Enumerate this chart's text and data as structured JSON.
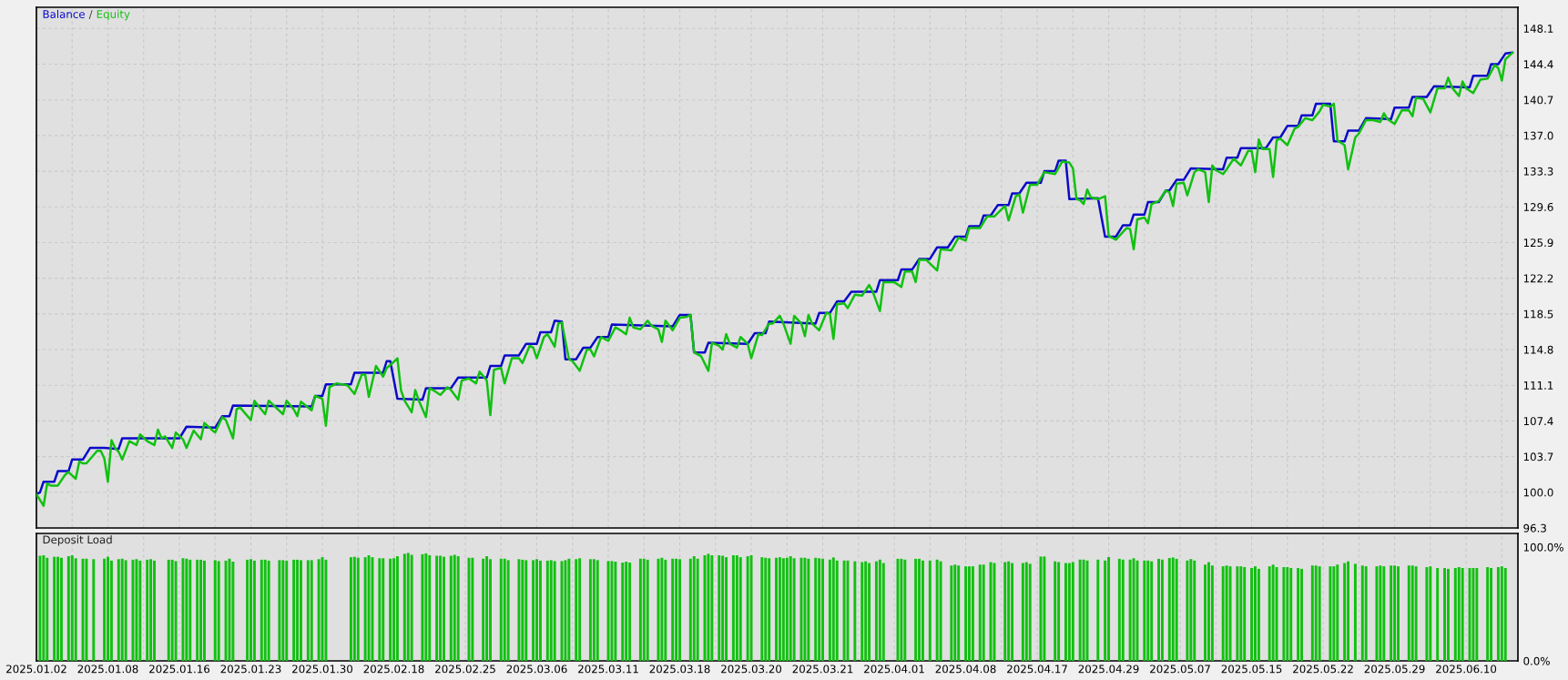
{
  "chart_data": [
    {
      "type": "line",
      "legend": "top left",
      "annotations": [
        "/"
      ],
      "grid": true,
      "tick_labels": "y",
      "categories": [
        "2025.01.02",
        null,
        null,
        null,
        null,
        null,
        null,
        null,
        null,
        null,
        null,
        null,
        null,
        null,
        null,
        null,
        null,
        null,
        null,
        null,
        "2025.01.08",
        null,
        null,
        null,
        null,
        null,
        null,
        null,
        null,
        null,
        null,
        null,
        null,
        null,
        null,
        null,
        null,
        null,
        null,
        null,
        "2025.01.16",
        null,
        null,
        null,
        null,
        null,
        null,
        null,
        null,
        null,
        null,
        null,
        null,
        null,
        null,
        null,
        null,
        null,
        null,
        null,
        "2025.01.23",
        null,
        null,
        null,
        null,
        null,
        null,
        null,
        null,
        null,
        null,
        null,
        null,
        null,
        null,
        null,
        null,
        null,
        null,
        null,
        "2025.01.30",
        null,
        null,
        null,
        null,
        null,
        null,
        null,
        null,
        null,
        null,
        null,
        null,
        null,
        null,
        null,
        null,
        null,
        null,
        null,
        "2025.02.18",
        null,
        null,
        null,
        null,
        null,
        null,
        null,
        null,
        null,
        null,
        null,
        null,
        null,
        null,
        null,
        null,
        null,
        null,
        null,
        "2025.02.25",
        null,
        null,
        null,
        null,
        null,
        null,
        null,
        null,
        null,
        null,
        null,
        null,
        null,
        null,
        null,
        null,
        null,
        null,
        null,
        "2025.03.06",
        null,
        null,
        null,
        null,
        null,
        null,
        null,
        null,
        null,
        null,
        null,
        null,
        null,
        null,
        null,
        null,
        null,
        null,
        null,
        "2025.03.11",
        null,
        null,
        null,
        null,
        null,
        null,
        null,
        null,
        null,
        null,
        null,
        null,
        null,
        null,
        null,
        null,
        null,
        null,
        null,
        "2025.03.18",
        null,
        null,
        null,
        null,
        null,
        null,
        null,
        null,
        null,
        null,
        null,
        null,
        null,
        null,
        null,
        null,
        null,
        null,
        null,
        "2025.03.20",
        null,
        null,
        null,
        null,
        null,
        null,
        null,
        null,
        null,
        null,
        null,
        null,
        null,
        null,
        null,
        null,
        null,
        null,
        null,
        "2025.03.21",
        null,
        null,
        null,
        null,
        null,
        null,
        null,
        null,
        null,
        null,
        null,
        null,
        null,
        null,
        null,
        null,
        null,
        null,
        null,
        "2025.04.01",
        null,
        null,
        null,
        null,
        null,
        null,
        null,
        null,
        null,
        null,
        null,
        null,
        null,
        null,
        null,
        null,
        null,
        null,
        null,
        "2025.04.08",
        null,
        null,
        null,
        null,
        null,
        null,
        null,
        null,
        null,
        null,
        null,
        null,
        null,
        null,
        null,
        null,
        null,
        null,
        null,
        "2025.04.17",
        null,
        null,
        null,
        null,
        null,
        null,
        null,
        null,
        null,
        null,
        null,
        null,
        null,
        null,
        null,
        null,
        null,
        null,
        null,
        "2025.04.29",
        null,
        null,
        null,
        null,
        null,
        null,
        null,
        null,
        null,
        null,
        null,
        null,
        null,
        null,
        null,
        null,
        null,
        null,
        null,
        "2025.05.07",
        null,
        null,
        null,
        null,
        null,
        null,
        null,
        null,
        null,
        null,
        null,
        null,
        null,
        null,
        null,
        null,
        null,
        null,
        null,
        "2025.05.15",
        null,
        null,
        null,
        null,
        null,
        null,
        null,
        null,
        null,
        null,
        null,
        null,
        null,
        null,
        null,
        null,
        null,
        null,
        null,
        "2025.05.22",
        null,
        null,
        null,
        null,
        null,
        null,
        null,
        null,
        null,
        null,
        null,
        null,
        null,
        null,
        null,
        null,
        null,
        null,
        null,
        "2025.05.29",
        null,
        null,
        null,
        null,
        null,
        null,
        null,
        null,
        null,
        null,
        null,
        null,
        null,
        null,
        null,
        null,
        null,
        null,
        null,
        "2025.06.10",
        null,
        null,
        null,
        null,
        null,
        null,
        null,
        null,
        null,
        null,
        null,
        null,
        null,
        null
      ],
      "ylim": [
        96.3,
        150.3
      ],
      "yticks": [
        {
          "value": 96.3,
          "label": "96.3"
        },
        {
          "value": 100.0,
          "label": "100.0"
        },
        {
          "value": 103.7,
          "label": "103.7"
        },
        {
          "value": 107.4,
          "label": "107.4"
        },
        {
          "value": 111.1,
          "label": "111.1"
        },
        {
          "value": 114.8,
          "label": "114.8"
        },
        {
          "value": 118.5,
          "label": "118.5"
        },
        {
          "value": 122.2,
          "label": "122.2"
        },
        {
          "value": 125.9,
          "label": "125.9"
        },
        {
          "value": 129.6,
          "label": "129.6"
        },
        {
          "value": 133.3,
          "label": "133.3"
        },
        {
          "value": 137.0,
          "label": "137.0"
        },
        {
          "value": 140.7,
          "label": "140.7"
        },
        {
          "value": 144.4,
          "label": "144.4"
        },
        {
          "value": 148.1,
          "label": "148.1"
        }
      ],
      "series": [
        {
          "name": "Balance",
          "color": "#0a0ac8",
          "values": [
            99.8,
            100.0,
            101.1,
            null,
            null,
            101.1,
            102.2,
            null,
            null,
            102.2,
            103.4,
            null,
            null,
            103.4,
            null,
            104.6,
            null,
            null,
            null,
            104.6,
            null,
            null,
            null,
            104.5,
            105.6,
            null,
            null,
            null,
            null,
            null,
            null,
            null,
            null,
            null,
            null,
            null,
            null,
            null,
            null,
            null,
            105.6,
            null,
            106.8,
            null,
            null,
            null,
            null,
            null,
            null,
            null,
            106.7,
            null,
            107.9,
            null,
            107.9,
            109.0,
            null,
            null,
            null,
            null,
            null,
            null,
            null,
            null,
            null,
            null,
            null,
            null,
            null,
            null,
            null,
            null,
            null,
            null,
            null,
            null,
            null,
            108.9,
            110.0,
            null,
            110.0,
            111.2,
            null,
            null,
            null,
            null,
            null,
            null,
            111.2,
            112.4,
            null,
            null,
            null,
            null,
            null,
            null,
            null,
            112.4,
            113.6,
            113.6,
            null,
            109.7,
            null,
            null,
            null,
            null,
            null,
            null,
            109.6,
            110.8,
            null,
            null,
            null,
            null,
            null,
            null,
            110.8,
            null,
            111.9,
            null,
            null,
            null,
            null,
            null,
            null,
            null,
            111.9,
            113.1,
            null,
            null,
            113.1,
            114.2,
            null,
            null,
            null,
            114.2,
            null,
            115.4,
            null,
            null,
            115.4,
            116.6,
            null,
            null,
            116.6,
            117.8,
            null,
            117.7,
            113.8,
            null,
            null,
            113.8,
            null,
            115.0,
            null,
            115.0,
            null,
            116.1,
            null,
            null,
            116.1,
            117.4,
            null,
            null,
            null,
            null,
            null,
            null,
            null,
            null,
            null,
            null,
            null,
            null,
            null,
            null,
            null,
            null,
            117.2,
            null,
            118.4,
            null,
            null,
            118.4,
            114.5,
            null,
            null,
            114.5,
            115.5,
            null,
            null,
            null,
            null,
            null,
            null,
            null,
            null,
            null,
            null,
            115.4,
            null,
            116.5,
            null,
            null,
            116.5,
            117.7,
            null,
            null,
            null,
            null,
            null,
            null,
            null,
            null,
            null,
            null,
            null,
            null,
            117.5,
            118.6,
            null,
            null,
            118.6,
            null,
            119.8,
            null,
            119.8,
            null,
            120.8,
            null,
            null,
            null,
            null,
            null,
            null,
            120.8,
            122.0,
            null,
            null,
            null,
            null,
            122.0,
            123.1,
            null,
            null,
            123.1,
            null,
            124.2,
            null,
            null,
            124.2,
            null,
            125.4,
            null,
            null,
            125.4,
            null,
            126.5,
            null,
            null,
            126.5,
            127.6,
            null,
            null,
            127.6,
            128.7,
            null,
            128.7,
            null,
            129.8,
            null,
            null,
            129.8,
            131.0,
            null,
            131.0,
            null,
            132.1,
            null,
            null,
            null,
            132.1,
            133.3,
            null,
            null,
            133.3,
            134.4,
            null,
            134.4,
            130.4,
            null,
            null,
            null,
            null,
            null,
            null,
            null,
            130.5,
            null,
            126.5,
            null,
            null,
            126.5,
            null,
            127.7,
            null,
            127.7,
            128.8,
            null,
            null,
            128.8,
            130.1,
            null,
            null,
            130.1,
            null,
            131.3,
            131.3,
            null,
            132.4,
            null,
            132.4,
            null,
            133.6,
            null,
            null,
            null,
            null,
            null,
            null,
            null,
            null,
            133.5,
            134.7,
            null,
            null,
            134.7,
            135.7,
            null,
            null,
            null,
            null,
            null,
            null,
            135.7,
            null,
            136.8,
            null,
            136.8,
            null,
            138.0,
            null,
            null,
            138.0,
            139.1,
            null,
            null,
            139.1,
            140.3,
            null,
            null,
            null,
            140.3,
            136.4,
            null,
            null,
            136.4,
            137.5,
            null,
            null,
            137.5,
            null,
            138.8,
            null,
            null,
            null,
            null,
            null,
            null,
            138.7,
            139.9,
            null,
            null,
            null,
            139.9,
            141.0,
            null,
            null,
            null,
            141.0,
            null,
            142.1,
            null,
            null,
            null,
            null,
            null,
            null,
            null,
            null,
            null,
            142.0,
            143.2,
            null,
            null,
            null,
            143.2,
            144.4,
            null,
            144.4,
            null,
            145.5,
            null,
            145.6,
            null
          ]
        },
        {
          "name": "Equity",
          "color": "#12c012",
          "values": [
            99.8,
            null,
            98.6,
            100.9,
            100.7,
            null,
            100.7,
            null,
            101.8,
            102.1,
            null,
            101.4,
            103.2,
            103.0,
            103.0,
            null,
            null,
            104.3,
            104.3,
            103.5,
            101.1,
            105.4,
            104.6,
            104.2,
            103.4,
            null,
            105.3,
            null,
            104.9,
            106.0,
            null,
            105.3,
            null,
            104.9,
            106.5,
            105.6,
            105.8,
            null,
            104.6,
            106.2,
            null,
            105.5,
            104.6,
            null,
            106.4,
            null,
            105.5,
            107.2,
            null,
            106.5,
            106.2,
            null,
            107.8,
            107.5,
            null,
            105.6,
            108.6,
            108.8,
            null,
            null,
            107.5,
            109.5,
            109.0,
            null,
            108.1,
            109.5,
            null,
            108.8,
            null,
            108.1,
            109.5,
            null,
            108.6,
            107.9,
            109.4,
            null,
            null,
            108.5,
            110.0,
            null,
            109.7,
            106.9,
            110.9,
            null,
            111.3,
            null,
            null,
            111.1,
            null,
            110.2,
            null,
            112.2,
            112.2,
            109.9,
            null,
            113.1,
            null,
            112.0,
            112.9,
            113.2,
            null,
            113.9,
            110.6,
            109.5,
            null,
            108.3,
            110.6,
            109.5,
            null,
            107.8,
            110.8,
            110.6,
            null,
            110.1,
            null,
            110.9,
            110.6,
            null,
            109.6,
            111.6,
            null,
            111.8,
            null,
            111.3,
            112.5,
            null,
            111.6,
            108.0,
            112.7,
            null,
            112.9,
            111.3,
            null,
            113.9,
            null,
            113.9,
            113.4,
            null,
            115.2,
            115.0,
            113.9,
            null,
            116.1,
            116.4,
            null,
            115.1,
            117.5,
            117.6,
            null,
            113.8,
            113.6,
            null,
            112.6,
            null,
            114.8,
            114.8,
            114.1,
            null,
            116.1,
            null,
            115.7,
            null,
            117.1,
            116.9,
            null,
            116.4,
            118.1,
            117.1,
            null,
            116.9,
            null,
            117.8,
            117.3,
            null,
            116.9,
            115.6,
            117.8,
            null,
            116.8,
            null,
            118.1,
            null,
            118.2,
            118.4,
            114.5,
            null,
            114.1,
            null,
            112.6,
            115.5,
            null,
            115.2,
            114.8,
            116.4,
            115.4,
            null,
            115.0,
            116.1,
            null,
            115.4,
            113.9,
            null,
            116.4,
            116.3,
            null,
            117.5,
            117.5,
            null,
            118.3,
            117.5,
            null,
            115.4,
            118.3,
            null,
            117.5,
            116.2,
            118.4,
            117.5,
            null,
            116.8,
            null,
            118.6,
            118.5,
            115.9,
            119.5,
            null,
            119.6,
            119.1,
            null,
            120.5,
            null,
            120.4,
            null,
            121.5,
            120.8,
            null,
            118.8,
            121.8,
            null,
            null,
            121.8,
            null,
            121.3,
            122.9,
            null,
            122.9,
            121.8,
            124.1,
            null,
            124.1,
            null,
            null,
            123.0,
            125.2,
            null,
            null,
            125.1,
            null,
            126.4,
            null,
            126.1,
            127.4,
            null,
            null,
            127.4,
            null,
            128.6,
            null,
            128.6,
            null,
            null,
            129.7,
            128.2,
            null,
            130.7,
            130.9,
            129.0,
            null,
            131.9,
            null,
            131.9,
            null,
            133.2,
            null,
            null,
            133.0,
            null,
            134.3,
            null,
            134.2,
            133.6,
            130.4,
            130.3,
            129.9,
            131.4,
            130.6,
            null,
            130.4,
            null,
            130.7,
            126.6,
            126.4,
            126.2,
            null,
            null,
            127.4,
            127.3,
            125.2,
            128.3,
            null,
            128.5,
            127.9,
            129.9,
            null,
            130.2,
            null,
            131.3,
            131.1,
            129.7,
            132.0,
            null,
            132.1,
            130.8,
            null,
            133.2,
            133.5,
            null,
            133.2,
            130.1,
            133.9,
            133.4,
            null,
            133.0,
            133.5,
            null,
            134.6,
            null,
            133.9,
            null,
            135.4,
            135.4,
            133.2,
            136.6,
            135.6,
            null,
            135.6,
            132.7,
            136.5,
            136.7,
            null,
            136.0,
            null,
            137.7,
            137.9,
            null,
            138.8,
            null,
            138.6,
            null,
            139.5,
            140.2,
            null,
            140.0,
            140.3,
            136.5,
            null,
            136.0,
            133.5,
            null,
            136.8,
            137.2,
            null,
            138.6,
            null,
            138.6,
            null,
            138.4,
            139.3,
            138.7,
            null,
            138.2,
            null,
            139.6,
            null,
            139.6,
            139.0,
            140.9,
            null,
            140.8,
            null,
            139.4,
            null,
            141.9,
            null,
            141.9,
            143.0,
            142.0,
            null,
            141.1,
            142.6,
            141.9,
            null,
            141.4,
            null,
            142.8,
            null,
            142.9,
            null,
            144.3,
            144.0,
            142.7,
            144.9,
            null,
            145.6,
            null
          ]
        }
      ]
    },
    {
      "type": "bar",
      "title": "Deposit Load",
      "grid": "x",
      "categories": [
        "2025.01.02",
        null,
        null,
        null,
        null,
        null,
        null,
        null,
        null,
        null,
        null,
        null,
        null,
        null,
        null,
        null,
        null,
        null,
        null,
        null,
        "2025.01.08",
        null,
        null,
        null,
        null,
        null,
        null,
        null,
        null,
        null,
        null,
        null,
        null,
        null,
        null,
        null,
        null,
        null,
        null,
        null,
        "2025.01.16",
        null,
        null,
        null,
        null,
        null,
        null,
        null,
        null,
        null,
        null,
        null,
        null,
        null,
        null,
        null,
        null,
        null,
        null,
        null,
        "2025.01.23",
        null,
        null,
        null,
        null,
        null,
        null,
        null,
        null,
        null,
        null,
        null,
        null,
        null,
        null,
        null,
        null,
        null,
        null,
        null,
        "2025.01.30",
        null,
        null,
        null,
        null,
        null,
        null,
        null,
        null,
        null,
        null,
        null,
        null,
        null,
        null,
        null,
        null,
        null,
        null,
        null,
        "2025.02.18",
        null,
        null,
        null,
        null,
        null,
        null,
        null,
        null,
        null,
        null,
        null,
        null,
        null,
        null,
        null,
        null,
        null,
        null,
        null,
        "2025.02.25",
        null,
        null,
        null,
        null,
        null,
        null,
        null,
        null,
        null,
        null,
        null,
        null,
        null,
        null,
        null,
        null,
        null,
        null,
        null,
        "2025.03.06",
        null,
        null,
        null,
        null,
        null,
        null,
        null,
        null,
        null,
        null,
        null,
        null,
        null,
        null,
        null,
        null,
        null,
        null,
        null,
        "2025.03.11",
        null,
        null,
        null,
        null,
        null,
        null,
        null,
        null,
        null,
        null,
        null,
        null,
        null,
        null,
        null,
        null,
        null,
        null,
        null,
        "2025.03.18",
        null,
        null,
        null,
        null,
        null,
        null,
        null,
        null,
        null,
        null,
        null,
        null,
        null,
        null,
        null,
        null,
        null,
        null,
        null,
        "2025.03.20",
        null,
        null,
        null,
        null,
        null,
        null,
        null,
        null,
        null,
        null,
        null,
        null,
        null,
        null,
        null,
        null,
        null,
        null,
        null,
        "2025.03.21",
        null,
        null,
        null,
        null,
        null,
        null,
        null,
        null,
        null,
        null,
        null,
        null,
        null,
        null,
        null,
        null,
        null,
        null,
        null,
        "2025.04.01",
        null,
        null,
        null,
        null,
        null,
        null,
        null,
        null,
        null,
        null,
        null,
        null,
        null,
        null,
        null,
        null,
        null,
        null,
        null,
        "2025.04.08",
        null,
        null,
        null,
        null,
        null,
        null,
        null,
        null,
        null,
        null,
        null,
        null,
        null,
        null,
        null,
        null,
        null,
        null,
        null,
        "2025.04.17",
        null,
        null,
        null,
        null,
        null,
        null,
        null,
        null,
        null,
        null,
        null,
        null,
        null,
        null,
        null,
        null,
        null,
        null,
        null,
        "2025.04.29",
        null,
        null,
        null,
        null,
        null,
        null,
        null,
        null,
        null,
        null,
        null,
        null,
        null,
        null,
        null,
        null,
        null,
        null,
        null,
        "2025.05.07",
        null,
        null,
        null,
        null,
        null,
        null,
        null,
        null,
        null,
        null,
        null,
        null,
        null,
        null,
        null,
        null,
        null,
        null,
        null,
        "2025.05.15",
        null,
        null,
        null,
        null,
        null,
        null,
        null,
        null,
        null,
        null,
        null,
        null,
        null,
        null,
        null,
        null,
        null,
        null,
        null,
        "2025.05.22",
        null,
        null,
        null,
        null,
        null,
        null,
        null,
        null,
        null,
        null,
        null,
        null,
        null,
        null,
        null,
        null,
        null,
        null,
        null,
        "2025.05.29",
        null,
        null,
        null,
        null,
        null,
        null,
        null,
        null,
        null,
        null,
        null,
        null,
        null,
        null,
        null,
        null,
        null,
        null,
        null,
        "2025.06.10",
        null,
        null,
        null,
        null,
        null,
        null,
        null,
        null,
        null,
        null,
        null,
        null,
        null,
        null
      ],
      "ylim": [
        0,
        112
      ],
      "yticks": [
        {
          "value": 0,
          "label": "0.0%"
        },
        {
          "value": 100,
          "label": "100.0%"
        }
      ],
      "series": [
        {
          "color": "#12c012",
          "values": [
            null,
            92.4,
            92.8,
            90.6,
            null,
            91.5,
            91.5,
            90.6,
            null,
            92.0,
            92.8,
            90.2,
            null,
            89.8,
            89.8,
            null,
            89.4,
            null,
            null,
            89.8,
            91.5,
            88.1,
            null,
            89.4,
            89.8,
            88.5,
            null,
            88.9,
            89.4,
            88.1,
            null,
            88.9,
            89.4,
            88.1,
            null,
            null,
            null,
            88.9,
            88.9,
            87.7,
            null,
            90.2,
            89.8,
            88.9,
            null,
            88.9,
            88.9,
            88.1,
            null,
            null,
            88.5,
            87.7,
            null,
            88.1,
            89.8,
            87.2,
            null,
            null,
            null,
            88.9,
            89.4,
            88.1,
            null,
            88.9,
            88.9,
            88.1,
            null,
            null,
            88.5,
            88.5,
            88.1,
            null,
            88.9,
            88.9,
            88.5,
            null,
            88.5,
            88.5,
            null,
            89.4,
            91.1,
            88.9,
            null,
            null,
            null,
            null,
            null,
            null,
            91.1,
            91.5,
            90.6,
            null,
            91.1,
            92.8,
            91.1,
            null,
            90.2,
            90.2,
            null,
            89.8,
            90.2,
            92.0,
            null,
            94.1,
            94.9,
            93.2,
            null,
            null,
            93.7,
            94.5,
            92.8,
            null,
            92.4,
            92.4,
            91.5,
            null,
            92.4,
            93.2,
            92.0,
            null,
            null,
            90.6,
            90.6,
            null,
            null,
            89.8,
            92.0,
            89.4,
            null,
            null,
            89.8,
            89.8,
            88.5,
            null,
            null,
            89.4,
            88.9,
            88.5,
            null,
            88.5,
            89.4,
            88.1,
            null,
            88.1,
            88.5,
            87.7,
            null,
            87.7,
            88.5,
            89.8,
            null,
            89.4,
            90.2,
            null,
            null,
            89.4,
            89.4,
            88.5,
            null,
            null,
            87.7,
            87.7,
            87.2,
            null,
            86.4,
            87.2,
            86.4,
            null,
            null,
            89.8,
            89.8,
            88.9,
            null,
            null,
            89.8,
            90.6,
            88.9,
            null,
            89.8,
            89.8,
            89.4,
            null,
            null,
            89.8,
            92.0,
            89.8,
            null,
            92.8,
            94.1,
            92.8,
            null,
            92.8,
            92.4,
            91.1,
            null,
            92.8,
            92.8,
            91.1,
            null,
            92.0,
            92.8,
            null,
            null,
            91.1,
            90.6,
            90.2,
            null,
            90.6,
            91.1,
            90.2,
            90.6,
            92.0,
            90.2,
            null,
            90.6,
            90.6,
            89.8,
            null,
            90.6,
            90.2,
            89.8,
            null,
            89.0,
            90.9,
            88.2,
            null,
            88.2,
            88.2,
            null,
            87.5,
            null,
            86.8,
            87.5,
            86.0,
            null,
            87.5,
            89.0,
            86.0,
            null,
            null,
            null,
            89.7,
            89.7,
            89.0,
            null,
            null,
            89.7,
            89.7,
            88.2,
            null,
            88.2,
            null,
            89.0,
            87.5,
            null,
            null,
            83.8,
            84.6,
            83.8,
            null,
            83.1,
            83.1,
            83.1,
            null,
            84.6,
            84.6,
            null,
            86.8,
            86.0,
            null,
            null,
            86.8,
            87.5,
            86.0,
            null,
            null,
            86.0,
            86.8,
            85.3,
            null,
            null,
            91.7,
            91.7,
            null,
            null,
            87.5,
            86.8,
            null,
            86.0,
            86.0,
            86.8,
            null,
            89.0,
            89.0,
            88.2,
            null,
            null,
            89.0,
            null,
            88.2,
            91.2,
            null,
            null,
            89.7,
            89.0,
            null,
            89.0,
            90.2,
            88.2,
            null,
            88.2,
            88.2,
            87.5,
            null,
            89.7,
            89.0,
            null,
            90.4,
            90.9,
            89.7,
            null,
            null,
            88.2,
            89.5,
            88.2,
            null,
            null,
            84.6,
            86.8,
            83.8,
            null,
            null,
            83.1,
            83.8,
            83.1,
            null,
            83.1,
            83.1,
            82.4,
            null,
            81.6,
            83.1,
            80.9,
            null,
            null,
            83.1,
            84.6,
            82.4,
            null,
            82.4,
            82.4,
            81.6,
            null,
            81.6,
            80.9,
            null,
            null,
            83.8,
            83.8,
            83.1,
            null,
            null,
            83.1,
            83.1,
            84.6,
            null,
            86.0,
            87.5,
            null,
            85.3,
            null,
            83.8,
            83.1,
            null,
            null,
            83.1,
            83.8,
            83.1,
            null,
            83.8,
            83.8,
            83.1,
            null,
            null,
            83.8,
            83.8,
            83.1,
            null,
            null,
            82.4,
            83.1,
            null,
            81.6,
            null,
            81.6,
            80.9,
            null,
            81.6,
            82.4,
            81.6,
            null,
            81.6,
            81.6,
            81.6,
            null,
            null,
            82.4,
            81.6,
            null,
            82.4,
            83.1,
            81.6,
            null,
            null,
            null
          ]
        }
      ]
    }
  ]
}
